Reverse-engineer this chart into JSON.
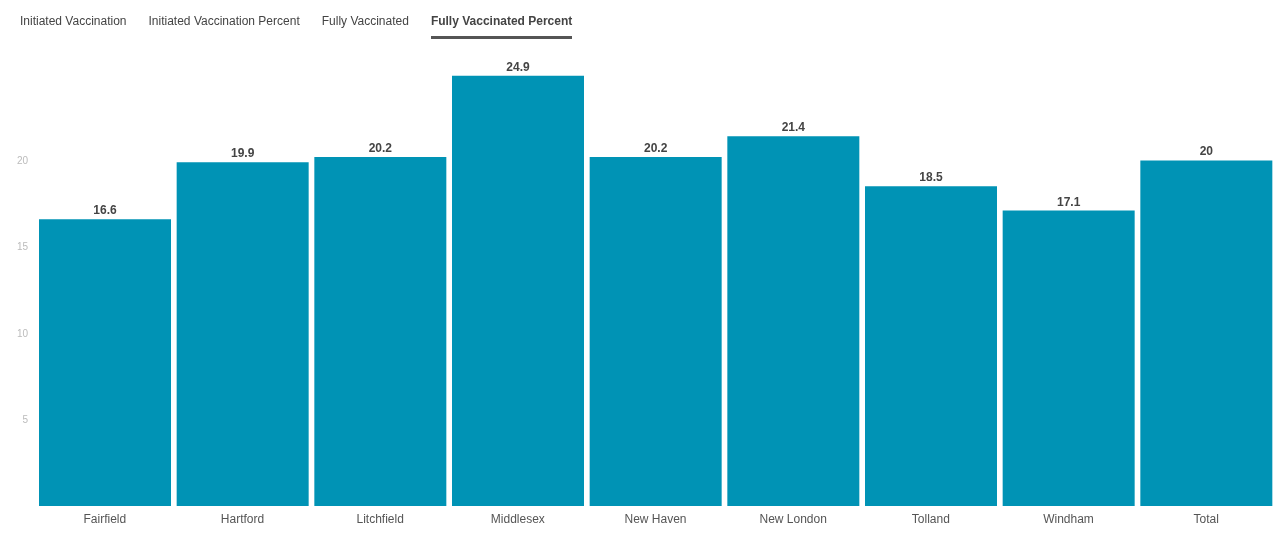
{
  "chart_data": {
    "type": "bar",
    "annotations": [
      "Initiated Vaccination",
      "Initiated Vaccination Percent",
      "Fully Vaccinated",
      "Fully Vaccinated Percent"
    ],
    "categories": [
      "Fairfield",
      "Hartford",
      "Litchfield",
      "Middlesex",
      "New Haven",
      "New London",
      "Tolland",
      "Windham",
      "Total"
    ],
    "values": [
      16.6,
      19.9,
      20.2,
      24.9,
      20.2,
      21.4,
      18.5,
      17.1,
      20
    ],
    "color": "#0093b5",
    "ylim": [
      0,
      25
    ],
    "yticks": [
      5,
      10,
      15,
      20
    ],
    "data_labels": true,
    "grid": false
  }
}
